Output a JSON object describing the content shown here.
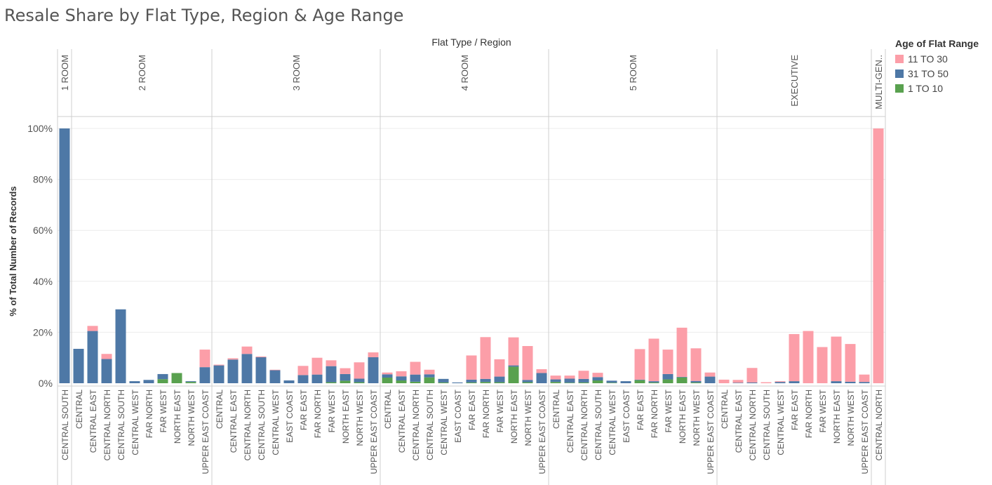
{
  "title": "Resale Share by Flat Type, Region & Age Range",
  "legend": {
    "title": "Age of Flat Range",
    "items": [
      {
        "label": "11 TO 30",
        "color": "#fc9ea8"
      },
      {
        "label": "31 TO 50",
        "color": "#4e78a6"
      },
      {
        "label": "1 TO 10",
        "color": "#59a14f"
      }
    ]
  },
  "chart_data": {
    "type": "bar",
    "stacked": true,
    "title": "Resale Share by Flat Type, Region & Age Range",
    "column_header": "Flat Type  /  Region",
    "ylabel": "% of Total Number of Records",
    "ylim": [
      0,
      100
    ],
    "yticks": [
      "0%",
      "20%",
      "40%",
      "60%",
      "80%",
      "100%"
    ],
    "grid": true,
    "legend_position": "top-right",
    "stack_order": [
      "1 TO 10",
      "31 TO 50",
      "11 TO 30"
    ],
    "groups": [
      {
        "name": "1 ROOM",
        "bars": [
          {
            "region": "CENTRAL SOUTH",
            "v1to10": 0,
            "v31to50": 100,
            "v11to30": 0
          }
        ]
      },
      {
        "name": "2 ROOM",
        "bars": [
          {
            "region": "CENTRAL",
            "v1to10": 0,
            "v31to50": 13.5,
            "v11to30": 0
          },
          {
            "region": "CENTRAL EAST",
            "v1to10": 0,
            "v31to50": 20.5,
            "v11to30": 2
          },
          {
            "region": "CENTRAL NORTH",
            "v1to10": 0,
            "v31to50": 9.5,
            "v11to30": 2
          },
          {
            "region": "CENTRAL SOUTH",
            "v1to10": 0,
            "v31to50": 29,
            "v11to30": 0
          },
          {
            "region": "CENTRAL WEST",
            "v1to10": 0,
            "v31to50": 0.8,
            "v11to30": 0
          },
          {
            "region": "FAR NORTH",
            "v1to10": 0,
            "v31to50": 1.3,
            "v11to30": 0
          },
          {
            "region": "FAR WEST",
            "v1to10": 1.6,
            "v31to50": 2,
            "v11to30": 0
          },
          {
            "region": "NORTH EAST",
            "v1to10": 4,
            "v31to50": 0,
            "v11to30": 0
          },
          {
            "region": "NORTH WEST",
            "v1to10": 0.5,
            "v31to50": 0.3,
            "v11to30": 0
          },
          {
            "region": "UPPER EAST COAST",
            "v1to10": 0,
            "v31to50": 6.3,
            "v11to30": 6.9
          }
        ]
      },
      {
        "name": "3 ROOM",
        "bars": [
          {
            "region": "CENTRAL",
            "v1to10": 0,
            "v31to50": 7,
            "v11to30": 0.3
          },
          {
            "region": "CENTRAL EAST",
            "v1to10": 0,
            "v31to50": 9.3,
            "v11to30": 0.5
          },
          {
            "region": "CENTRAL NORTH",
            "v1to10": 0,
            "v31to50": 11.5,
            "v11to30": 2.9
          },
          {
            "region": "CENTRAL SOUTH",
            "v1to10": 0,
            "v31to50": 10.2,
            "v11to30": 0.3
          },
          {
            "region": "CENTRAL WEST",
            "v1to10": 0,
            "v31to50": 5.1,
            "v11to30": 0.2
          },
          {
            "region": "EAST COAST",
            "v1to10": 0,
            "v31to50": 1.1,
            "v11to30": 0
          },
          {
            "region": "FAR EAST",
            "v1to10": 0,
            "v31to50": 3.2,
            "v11to30": 3.6
          },
          {
            "region": "FAR NORTH",
            "v1to10": 0,
            "v31to50": 3.4,
            "v11to30": 6.6
          },
          {
            "region": "FAR WEST",
            "v1to10": 0.4,
            "v31to50": 6.3,
            "v11to30": 2.3
          },
          {
            "region": "NORTH EAST",
            "v1to10": 1,
            "v31to50": 2.6,
            "v11to30": 2.3
          },
          {
            "region": "NORTH WEST",
            "v1to10": 0.4,
            "v31to50": 1.4,
            "v11to30": 6.4
          },
          {
            "region": "UPPER EAST COAST",
            "v1to10": 0,
            "v31to50": 10.2,
            "v11to30": 1.9
          }
        ]
      },
      {
        "name": "4 ROOM",
        "bars": [
          {
            "region": "CENTRAL",
            "v1to10": 2.2,
            "v31to50": 1.3,
            "v11to30": 0.7
          },
          {
            "region": "CENTRAL EAST",
            "v1to10": 1.1,
            "v31to50": 1.6,
            "v11to30": 2
          },
          {
            "region": "CENTRAL NORTH",
            "v1to10": 0.6,
            "v31to50": 2.8,
            "v11to30": 5
          },
          {
            "region": "CENTRAL SOUTH",
            "v1to10": 2.3,
            "v31to50": 1.2,
            "v11to30": 1.8
          },
          {
            "region": "CENTRAL WEST",
            "v1to10": 0.3,
            "v31to50": 1.4,
            "v11to30": 0
          },
          {
            "region": "EAST COAST",
            "v1to10": 0,
            "v31to50": 0.3,
            "v11to30": 0
          },
          {
            "region": "FAR EAST",
            "v1to10": 0.3,
            "v31to50": 1.1,
            "v11to30": 9.5
          },
          {
            "region": "FAR NORTH",
            "v1to10": 0.5,
            "v31to50": 1.2,
            "v11to30": 16.4
          },
          {
            "region": "FAR WEST",
            "v1to10": 0.4,
            "v31to50": 2.2,
            "v11to30": 6.8
          },
          {
            "region": "NORTH EAST",
            "v1to10": 6.5,
            "v31to50": 0.5,
            "v11to30": 11
          },
          {
            "region": "NORTH WEST",
            "v1to10": 0.4,
            "v31to50": 0.9,
            "v11to30": 13.3
          },
          {
            "region": "UPPER EAST COAST",
            "v1to10": 0,
            "v31to50": 4,
            "v11to30": 1.5
          }
        ]
      },
      {
        "name": "5 ROOM",
        "bars": [
          {
            "region": "CENTRAL",
            "v1to10": 0.5,
            "v31to50": 1,
            "v11to30": 1.5
          },
          {
            "region": "CENTRAL EAST",
            "v1to10": 0.2,
            "v31to50": 1.6,
            "v11to30": 1.2
          },
          {
            "region": "CENTRAL NORTH",
            "v1to10": 0.3,
            "v31to50": 1.4,
            "v11to30": 3.2
          },
          {
            "region": "CENTRAL SOUTH",
            "v1to10": 1.1,
            "v31to50": 1.3,
            "v11to30": 1.7
          },
          {
            "region": "CENTRAL WEST",
            "v1to10": 0.2,
            "v31to50": 0.8,
            "v11to30": 0
          },
          {
            "region": "EAST COAST",
            "v1to10": 0,
            "v31to50": 0.8,
            "v11to30": 0
          },
          {
            "region": "FAR EAST",
            "v1to10": 1.2,
            "v31to50": 0.2,
            "v11to30": 12
          },
          {
            "region": "FAR NORTH",
            "v1to10": 0.3,
            "v31to50": 0.5,
            "v11to30": 16.7
          },
          {
            "region": "FAR WEST",
            "v1to10": 1.5,
            "v31to50": 2.1,
            "v11to30": 9.6
          },
          {
            "region": "NORTH EAST",
            "v1to10": 2.3,
            "v31to50": 0.2,
            "v11to30": 19.3
          },
          {
            "region": "NORTH WEST",
            "v1to10": 0.3,
            "v31to50": 0.6,
            "v11to30": 12.8
          },
          {
            "region": "UPPER EAST COAST",
            "v1to10": 0,
            "v31to50": 2.6,
            "v11to30": 1.6
          }
        ]
      },
      {
        "name": "EXECUTIVE",
        "bars": [
          {
            "region": "CENTRAL",
            "v1to10": 0,
            "v31to50": 0,
            "v11to30": 1.4
          },
          {
            "region": "CENTRAL EAST",
            "v1to10": 0,
            "v31to50": 0.2,
            "v11to30": 1.1
          },
          {
            "region": "CENTRAL NORTH",
            "v1to10": 0,
            "v31to50": 0.3,
            "v11to30": 5.7
          },
          {
            "region": "CENTRAL SOUTH",
            "v1to10": 0,
            "v31to50": 0,
            "v11to30": 0.4
          },
          {
            "region": "CENTRAL WEST",
            "v1to10": 0,
            "v31to50": 0.5,
            "v11to30": 0.3
          },
          {
            "region": "FAR EAST",
            "v1to10": 0,
            "v31to50": 0.8,
            "v11to30": 18.5
          },
          {
            "region": "FAR NORTH",
            "v1to10": 0,
            "v31to50": 0,
            "v11to30": 20.5
          },
          {
            "region": "FAR WEST",
            "v1to10": 0,
            "v31to50": 0,
            "v11to30": 14.2
          },
          {
            "region": "NORTH EAST",
            "v1to10": 0,
            "v31to50": 0.8,
            "v11to30": 17.5
          },
          {
            "region": "NORTH WEST",
            "v1to10": 0,
            "v31to50": 0.6,
            "v11to30": 14.8
          },
          {
            "region": "UPPER EAST COAST",
            "v1to10": 0,
            "v31to50": 0.5,
            "v11to30": 2.9
          }
        ]
      },
      {
        "name": "MULTI-GEN..",
        "bars": [
          {
            "region": "CENTRAL NORTH",
            "v1to10": 0,
            "v31to50": 0,
            "v11to30": 100
          }
        ]
      }
    ]
  }
}
